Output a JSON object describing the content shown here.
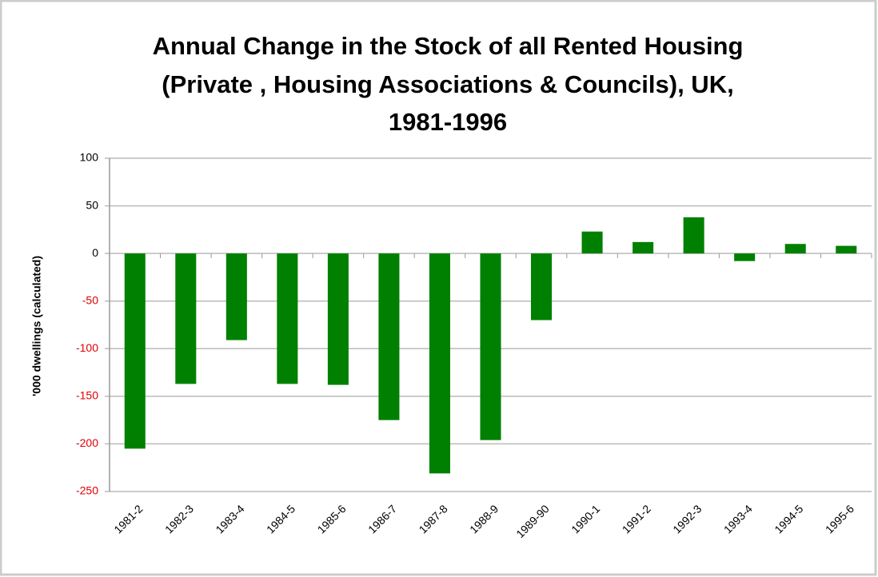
{
  "chart_data": {
    "type": "bar",
    "title": [
      "Annual Change in the Stock of all Rented Housing",
      "(Private , Housing Associations & Councils), UK,",
      "1981-1996"
    ],
    "y_label": "'000 dwellings (calculated)",
    "categories": [
      "1981-2",
      "1982-3",
      "1983-4",
      "1984-5",
      "1985-6",
      "1986-7",
      "1987-8",
      "1988-9",
      "1989-90",
      "1990-1",
      "1991-2",
      "1992-3",
      "1993-4",
      "1994-5",
      "1995-6"
    ],
    "values": [
      -205,
      -137,
      -91,
      -137,
      -138,
      -175,
      -231,
      -196,
      -70,
      23,
      12,
      38,
      -8,
      10,
      8
    ],
    "color": "#008000",
    "ylim": [
      -250,
      100
    ],
    "yticks": [
      -250,
      -200,
      -150,
      -100,
      -50,
      0,
      50,
      100
    ],
    "negative_tick_color": "#e00000",
    "grid": true
  }
}
